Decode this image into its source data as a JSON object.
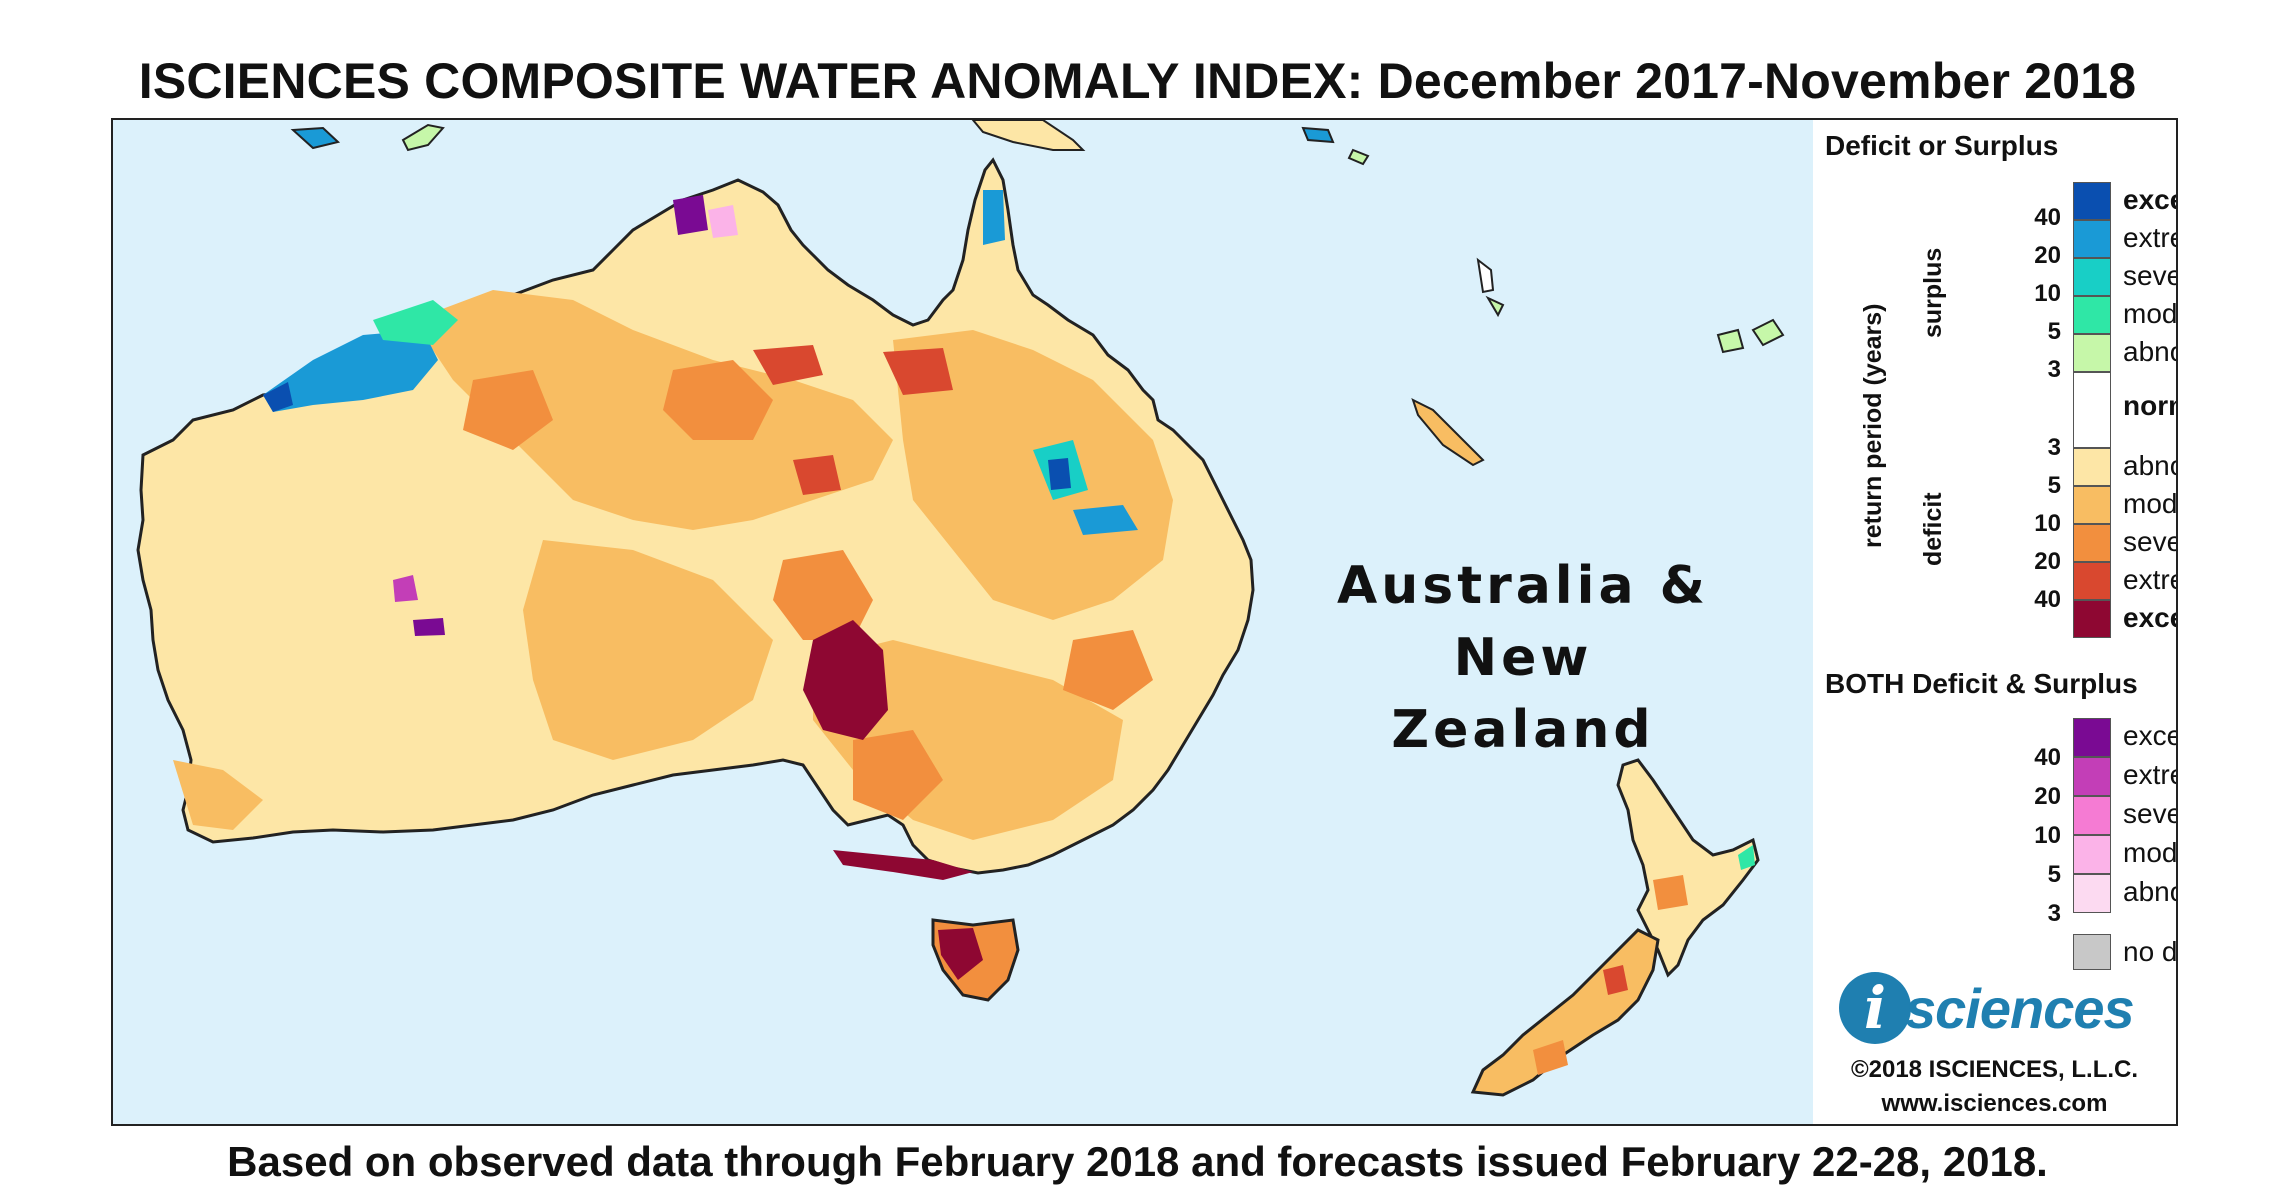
{
  "header": {
    "title": "ISCIENCES COMPOSITE WATER ANOMALY INDEX: December 2017-November 2018"
  },
  "footer": {
    "text": "Based on observed data through February 2018 and forecasts issued February 22-28, 2018."
  },
  "map": {
    "region_label_line1": "Australia &",
    "region_label_line2": "New Zealand",
    "ocean_color": "#dcf1fb",
    "coastline_color": "#222222"
  },
  "legend": {
    "deficit_surplus_title": "Deficit or Surplus",
    "axis_label": "return period (years)",
    "surplus_label": "surplus",
    "deficit_label": "deficit",
    "surplus_categories": [
      {
        "label": "exceptional",
        "color": "#0a4fb0",
        "bold": true
      },
      {
        "label": "extreme",
        "color": "#1a9ad6",
        "bold": false
      },
      {
        "label": "severe",
        "color": "#18cfc6",
        "bold": false
      },
      {
        "label": "moderate",
        "color": "#2fe7a6",
        "bold": false
      },
      {
        "label": "abnormal",
        "color": "#c6f7a9",
        "bold": false
      }
    ],
    "surplus_ticks": [
      "40",
      "20",
      "10",
      "5",
      "3"
    ],
    "normal_label": "normal",
    "normal_color": "#ffffff",
    "deficit_categories": [
      {
        "label": "abnormal",
        "color": "#fde6a6",
        "bold": false
      },
      {
        "label": "moderate",
        "color": "#f8bd62",
        "bold": false
      },
      {
        "label": "severe",
        "color": "#f28f3e",
        "bold": false
      },
      {
        "label": "extreme",
        "color": "#d9482f",
        "bold": false
      },
      {
        "label": "exceptional",
        "color": "#8e0732",
        "bold": true
      }
    ],
    "deficit_ticks": [
      "3",
      "5",
      "10",
      "20",
      "40"
    ],
    "both_title": "BOTH Deficit & Surplus",
    "both_categories": [
      {
        "label": "exceptional",
        "color": "#7a0a93"
      },
      {
        "label": "extreme",
        "color": "#c33eb7"
      },
      {
        "label": "severe",
        "color": "#f57bd3"
      },
      {
        "label": "moderate",
        "color": "#fbb3e8"
      },
      {
        "label": "abnormal",
        "color": "#fcdaf1"
      }
    ],
    "both_ticks": [
      "40",
      "20",
      "10",
      "5",
      "3"
    ],
    "no_data_label": "no data",
    "no_data_color": "#c8c8c8"
  },
  "branding": {
    "logo_letter": "i",
    "logo_text": "sciences",
    "copyright": "©2018 ISCIENCES, L.L.C.",
    "website": "www.isciences.com"
  }
}
